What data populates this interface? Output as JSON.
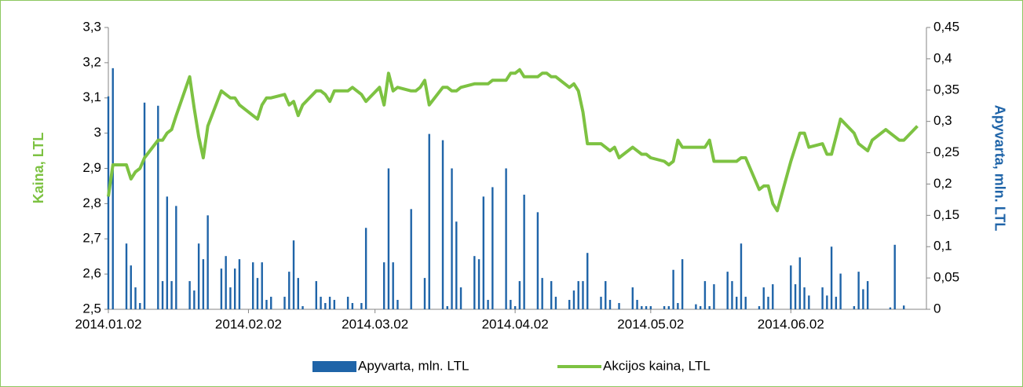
{
  "chart_data": {
    "type": "combo",
    "x": [
      "2014.01.02",
      "2014.01.03",
      "2014.01.06",
      "2014.01.07",
      "2014.01.08",
      "2014.01.09",
      "2014.01.10",
      "2014.01.13",
      "2014.01.14",
      "2014.01.15",
      "2014.01.16",
      "2014.01.17",
      "2014.01.20",
      "2014.01.21",
      "2014.01.22",
      "2014.01.23",
      "2014.01.24",
      "2014.01.27",
      "2014.01.28",
      "2014.01.29",
      "2014.01.30",
      "2014.01.31",
      "2014.02.03",
      "2014.02.04",
      "2014.02.05",
      "2014.02.06",
      "2014.02.07",
      "2014.02.10",
      "2014.02.11",
      "2014.02.12",
      "2014.02.13",
      "2014.02.14",
      "2014.02.17",
      "2014.02.18",
      "2014.02.19",
      "2014.02.20",
      "2014.02.21",
      "2014.02.24",
      "2014.02.25",
      "2014.02.26",
      "2014.02.27",
      "2014.02.28",
      "2014.03.03",
      "2014.03.04",
      "2014.03.05",
      "2014.03.06",
      "2014.03.07",
      "2014.03.10",
      "2014.03.11",
      "2014.03.12",
      "2014.03.13",
      "2014.03.14",
      "2014.03.17",
      "2014.03.18",
      "2014.03.19",
      "2014.03.20",
      "2014.03.21",
      "2014.03.24",
      "2014.03.25",
      "2014.03.26",
      "2014.03.27",
      "2014.03.28",
      "2014.03.31",
      "2014.04.01",
      "2014.04.02",
      "2014.04.03",
      "2014.04.04",
      "2014.04.07",
      "2014.04.08",
      "2014.04.09",
      "2014.04.10",
      "2014.04.11",
      "2014.04.14",
      "2014.04.15",
      "2014.04.16",
      "2014.04.17",
      "2014.04.18",
      "2014.04.21",
      "2014.04.22",
      "2014.04.23",
      "2014.04.24",
      "2014.04.25",
      "2014.04.28",
      "2014.04.29",
      "2014.04.30",
      "2014.05.01",
      "2014.05.02",
      "2014.05.05",
      "2014.05.06",
      "2014.05.07",
      "2014.05.08",
      "2014.05.09",
      "2014.05.12",
      "2014.05.13",
      "2014.05.14",
      "2014.05.15",
      "2014.05.16",
      "2014.05.19",
      "2014.05.20",
      "2014.05.21",
      "2014.05.22",
      "2014.05.23",
      "2014.05.26",
      "2014.05.27",
      "2014.05.28",
      "2014.05.29",
      "2014.05.30",
      "2014.06.02",
      "2014.06.03",
      "2014.06.04",
      "2014.06.05",
      "2014.06.06",
      "2014.06.09",
      "2014.06.10",
      "2014.06.11",
      "2014.06.12",
      "2014.06.13",
      "2014.06.16",
      "2014.06.17",
      "2014.06.18",
      "2014.06.19",
      "2014.06.20",
      "2014.06.23",
      "2014.06.24",
      "2014.06.25",
      "2014.06.26",
      "2014.06.27",
      "2014.06.30"
    ],
    "series": [
      {
        "name": "Apyvarta, mln. LTL",
        "type": "bar",
        "axis": "y2",
        "color": "#1f64a8",
        "values": [
          0.34,
          0.385,
          0.105,
          0.07,
          0.035,
          0.01,
          0.33,
          0.325,
          0.045,
          0.18,
          0.045,
          0.165,
          0.045,
          0.03,
          0.105,
          0.08,
          0.15,
          0.065,
          0.085,
          0.035,
          0.065,
          0.08,
          0.075,
          0.05,
          0.075,
          0.015,
          0.02,
          0.02,
          0.06,
          0.11,
          0.05,
          0.005,
          0.045,
          0.02,
          0.01,
          0.02,
          0.015,
          0.02,
          0.01,
          0,
          0.01,
          0.13,
          0,
          0.075,
          0.225,
          0.075,
          0.015,
          0.16,
          0,
          0,
          0.05,
          0.28,
          0.27,
          0.005,
          0.225,
          0.14,
          0.035,
          0.085,
          0.08,
          0.18,
          0.015,
          0.195,
          0.225,
          0.015,
          0.005,
          0.045,
          0.183,
          0.155,
          0.05,
          0,
          0.045,
          0.02,
          0.015,
          0.03,
          0.045,
          0.045,
          0.09,
          0.02,
          0.045,
          0.015,
          0,
          0.01,
          0.035,
          0.015,
          0.005,
          0.005,
          0.005,
          0.005,
          0.005,
          0.063,
          0.01,
          0.08,
          0.008,
          0.005,
          0.045,
          0.005,
          0.04,
          0.06,
          0.045,
          0.02,
          0.105,
          0.02,
          0.005,
          0.035,
          0.02,
          0.04,
          0,
          0.07,
          0.04,
          0.083,
          0.035,
          0.022,
          0.035,
          0.022,
          0.1,
          0.02,
          0.057,
          0.005,
          0.06,
          0.032,
          0.045,
          0,
          0,
          0.003,
          0.103,
          0,
          0.006,
          0
        ]
      },
      {
        "name": "Akcijos kaina, LTL",
        "type": "line",
        "color": "#7dc242",
        "values": [
          2.82,
          2.91,
          2.91,
          2.87,
          2.89,
          2.9,
          2.93,
          2.98,
          2.98,
          3.0,
          3.01,
          3.05,
          3.16,
          3.07,
          2.99,
          2.93,
          3.02,
          3.12,
          3.11,
          3.1,
          3.1,
          3.08,
          3.05,
          3.04,
          3.08,
          3.1,
          3.1,
          3.11,
          3.08,
          3.09,
          3.05,
          3.08,
          3.12,
          3.12,
          3.11,
          3.09,
          3.12,
          3.12,
          3.13,
          3.12,
          3.11,
          3.09,
          3.13,
          3.08,
          3.17,
          3.12,
          3.13,
          3.12,
          3.12,
          3.13,
          3.15,
          3.08,
          3.13,
          3.13,
          3.12,
          3.12,
          3.13,
          3.14,
          3.14,
          3.14,
          3.14,
          3.15,
          3.15,
          3.17,
          3.17,
          3.18,
          3.16,
          3.16,
          3.17,
          3.17,
          3.16,
          3.16,
          3.13,
          3.14,
          3.12,
          3.06,
          2.97,
          2.97,
          2.96,
          2.95,
          2.96,
          2.93,
          2.96,
          2.95,
          2.94,
          2.94,
          2.93,
          2.92,
          2.91,
          2.92,
          2.98,
          2.96,
          2.96,
          2.96,
          2.96,
          2.98,
          2.92,
          2.92,
          2.92,
          2.92,
          2.93,
          2.93,
          2.84,
          2.85,
          2.85,
          2.8,
          2.78,
          2.92,
          2.96,
          3.0,
          3.0,
          2.96,
          2.97,
          2.94,
          2.94,
          2.99,
          3.04,
          3.0,
          2.97,
          2.96,
          2.95,
          2.98,
          3.01,
          3.0,
          2.99,
          2.98,
          2.98,
          3.02
        ]
      }
    ],
    "xlim": [
      "2014.01.02",
      "2014.07.02"
    ],
    "xticks": [
      "2014.01.02",
      "2014.02.02",
      "2014.03.02",
      "2014.04.02",
      "2014.05.02",
      "2014.06.02"
    ],
    "ylabel": "Kaina, LTL",
    "y2label": "Apyvarta, mln. LTL",
    "ylim": [
      2.5,
      3.3
    ],
    "yticks": [
      {
        "value": 2.5,
        "label": "2,5"
      },
      {
        "value": 2.6,
        "label": "2,6"
      },
      {
        "value": 2.7,
        "label": "2,7"
      },
      {
        "value": 2.8,
        "label": "2,8"
      },
      {
        "value": 2.9,
        "label": "2,9"
      },
      3,
      {
        "value": 3.1,
        "label": "3,1"
      },
      {
        "value": 3.2,
        "label": "3,2"
      },
      {
        "value": 3.3,
        "label": "3,3"
      }
    ],
    "y2lim": [
      0,
      0.45
    ],
    "y2ticks": [
      0,
      {
        "value": 0.05,
        "label": "0,05"
      },
      {
        "value": 0.1,
        "label": "0,1"
      },
      {
        "value": 0.15,
        "label": "0,15"
      },
      {
        "value": 0.2,
        "label": "0,2"
      },
      {
        "value": 0.25,
        "label": "0,25"
      },
      {
        "value": 0.3,
        "label": "0,3"
      },
      {
        "value": 0.35,
        "label": "0,35"
      },
      {
        "value": 0.4,
        "label": "0,4"
      },
      {
        "value": 0.45,
        "label": "0,45"
      }
    ],
    "legend": "bottom"
  }
}
